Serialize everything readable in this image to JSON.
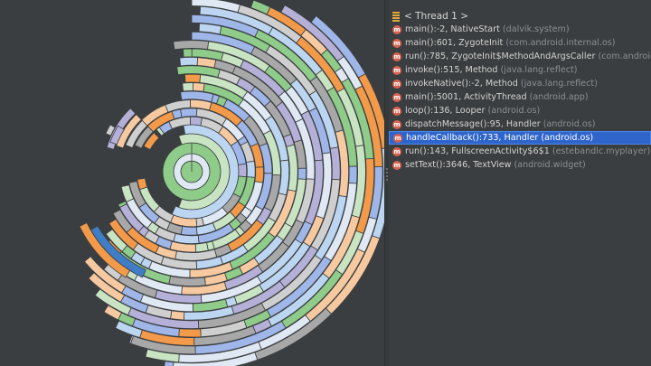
{
  "thread": {
    "label": "< Thread 1 >"
  },
  "tree": {
    "items": [
      {
        "method": "main():-2, NativeStart",
        "pkg": "(dalvik.system)",
        "selected": false
      },
      {
        "method": "main():601, ZygoteInit",
        "pkg": "(com.android.internal.os)",
        "selected": false
      },
      {
        "method": "run():785, ZygoteInit$MethodAndArgsCaller",
        "pkg": "(com.android.internal.os)",
        "selected": false
      },
      {
        "method": "invoke():515, Method",
        "pkg": "(java.lang.reflect)",
        "selected": false
      },
      {
        "method": "invokeNative():-2, Method",
        "pkg": "(java.lang.reflect)",
        "selected": false
      },
      {
        "method": "main():5001, ActivityThread",
        "pkg": "(android.app)",
        "selected": false
      },
      {
        "method": "loop():136, Looper",
        "pkg": "(android.os)",
        "selected": false
      },
      {
        "method": "dispatchMessage():95, Handler",
        "pkg": "(android.os)",
        "selected": false
      },
      {
        "method": "handleCallback():733, Handler",
        "pkg": "(android.os)",
        "selected": true
      },
      {
        "method": "run():143, FullscreenActivity$6$1",
        "pkg": "(estebandlc.myplayer)",
        "selected": false
      },
      {
        "method": "setText():3646, TextView",
        "pkg": "(android.widget)",
        "selected": false
      }
    ]
  },
  "icons": {
    "method_icon": "method-icon",
    "method_icon_letter": "m",
    "thread_icon": "thread-icon"
  },
  "colors": {
    "background": "#3b3e40",
    "selection": "#2f65ca",
    "palette": [
      "#8fcc8a",
      "#bcd6f2",
      "#9fb6e8",
      "#f39a4a",
      "#a8a8a8",
      "#cfcfcf",
      "#f6c9a0",
      "#b4b0d8",
      "#dfe8f3",
      "#c9e4c3",
      "#3f7dc6"
    ]
  }
}
